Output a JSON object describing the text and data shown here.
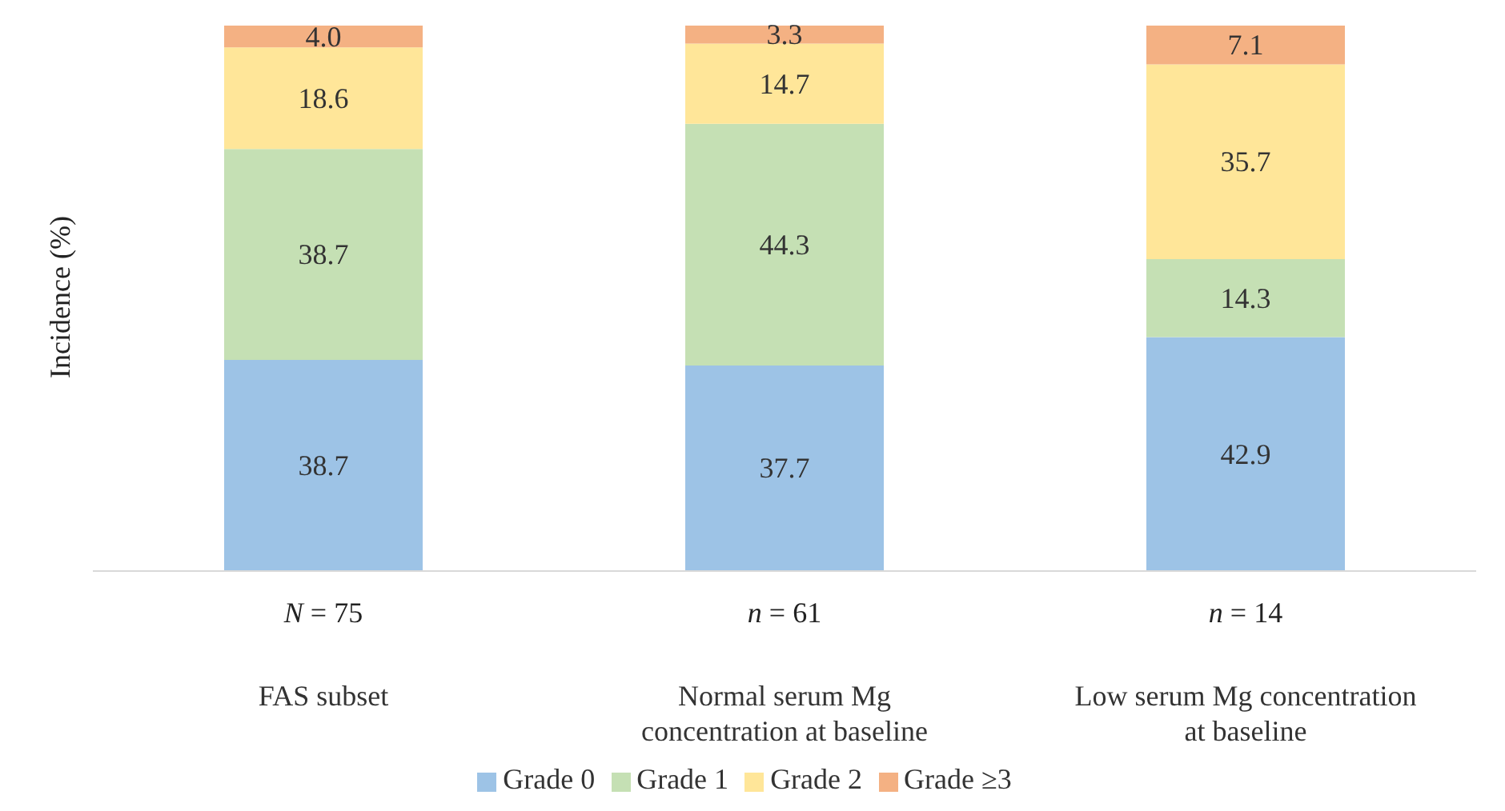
{
  "chart_data": {
    "type": "bar",
    "stacked": true,
    "ylabel": "Incidence (%)",
    "categories": [
      "FAS subset",
      "Normal serum Mg concentration at baseline",
      "Low serum Mg concentration at baseline"
    ],
    "series": [
      {
        "name": "Grade 0",
        "color": "#9dc3e6",
        "values": [
          38.7,
          37.7,
          42.9
        ],
        "value_labels": [
          "38.7",
          "37.7",
          "42.9"
        ]
      },
      {
        "name": "Grade 1",
        "color": "#c5e0b4",
        "values": [
          38.7,
          44.3,
          14.3
        ],
        "value_labels": [
          "38.7",
          "44.3",
          "14.3"
        ]
      },
      {
        "name": "Grade 2",
        "color": "#ffe699",
        "values": [
          18.6,
          14.7,
          35.7
        ],
        "value_labels": [
          "18.6",
          "14.7",
          "35.7"
        ]
      },
      {
        "name": "Grade ≥3",
        "color": "#f4b183",
        "values": [
          4.0,
          3.3,
          7.1
        ],
        "value_labels": [
          "4.0",
          "3.3",
          "7.1"
        ]
      }
    ],
    "annotations": [
      "N = 75",
      "n = 61",
      "n = 14"
    ],
    "legend": "bottom",
    "grid": false
  }
}
